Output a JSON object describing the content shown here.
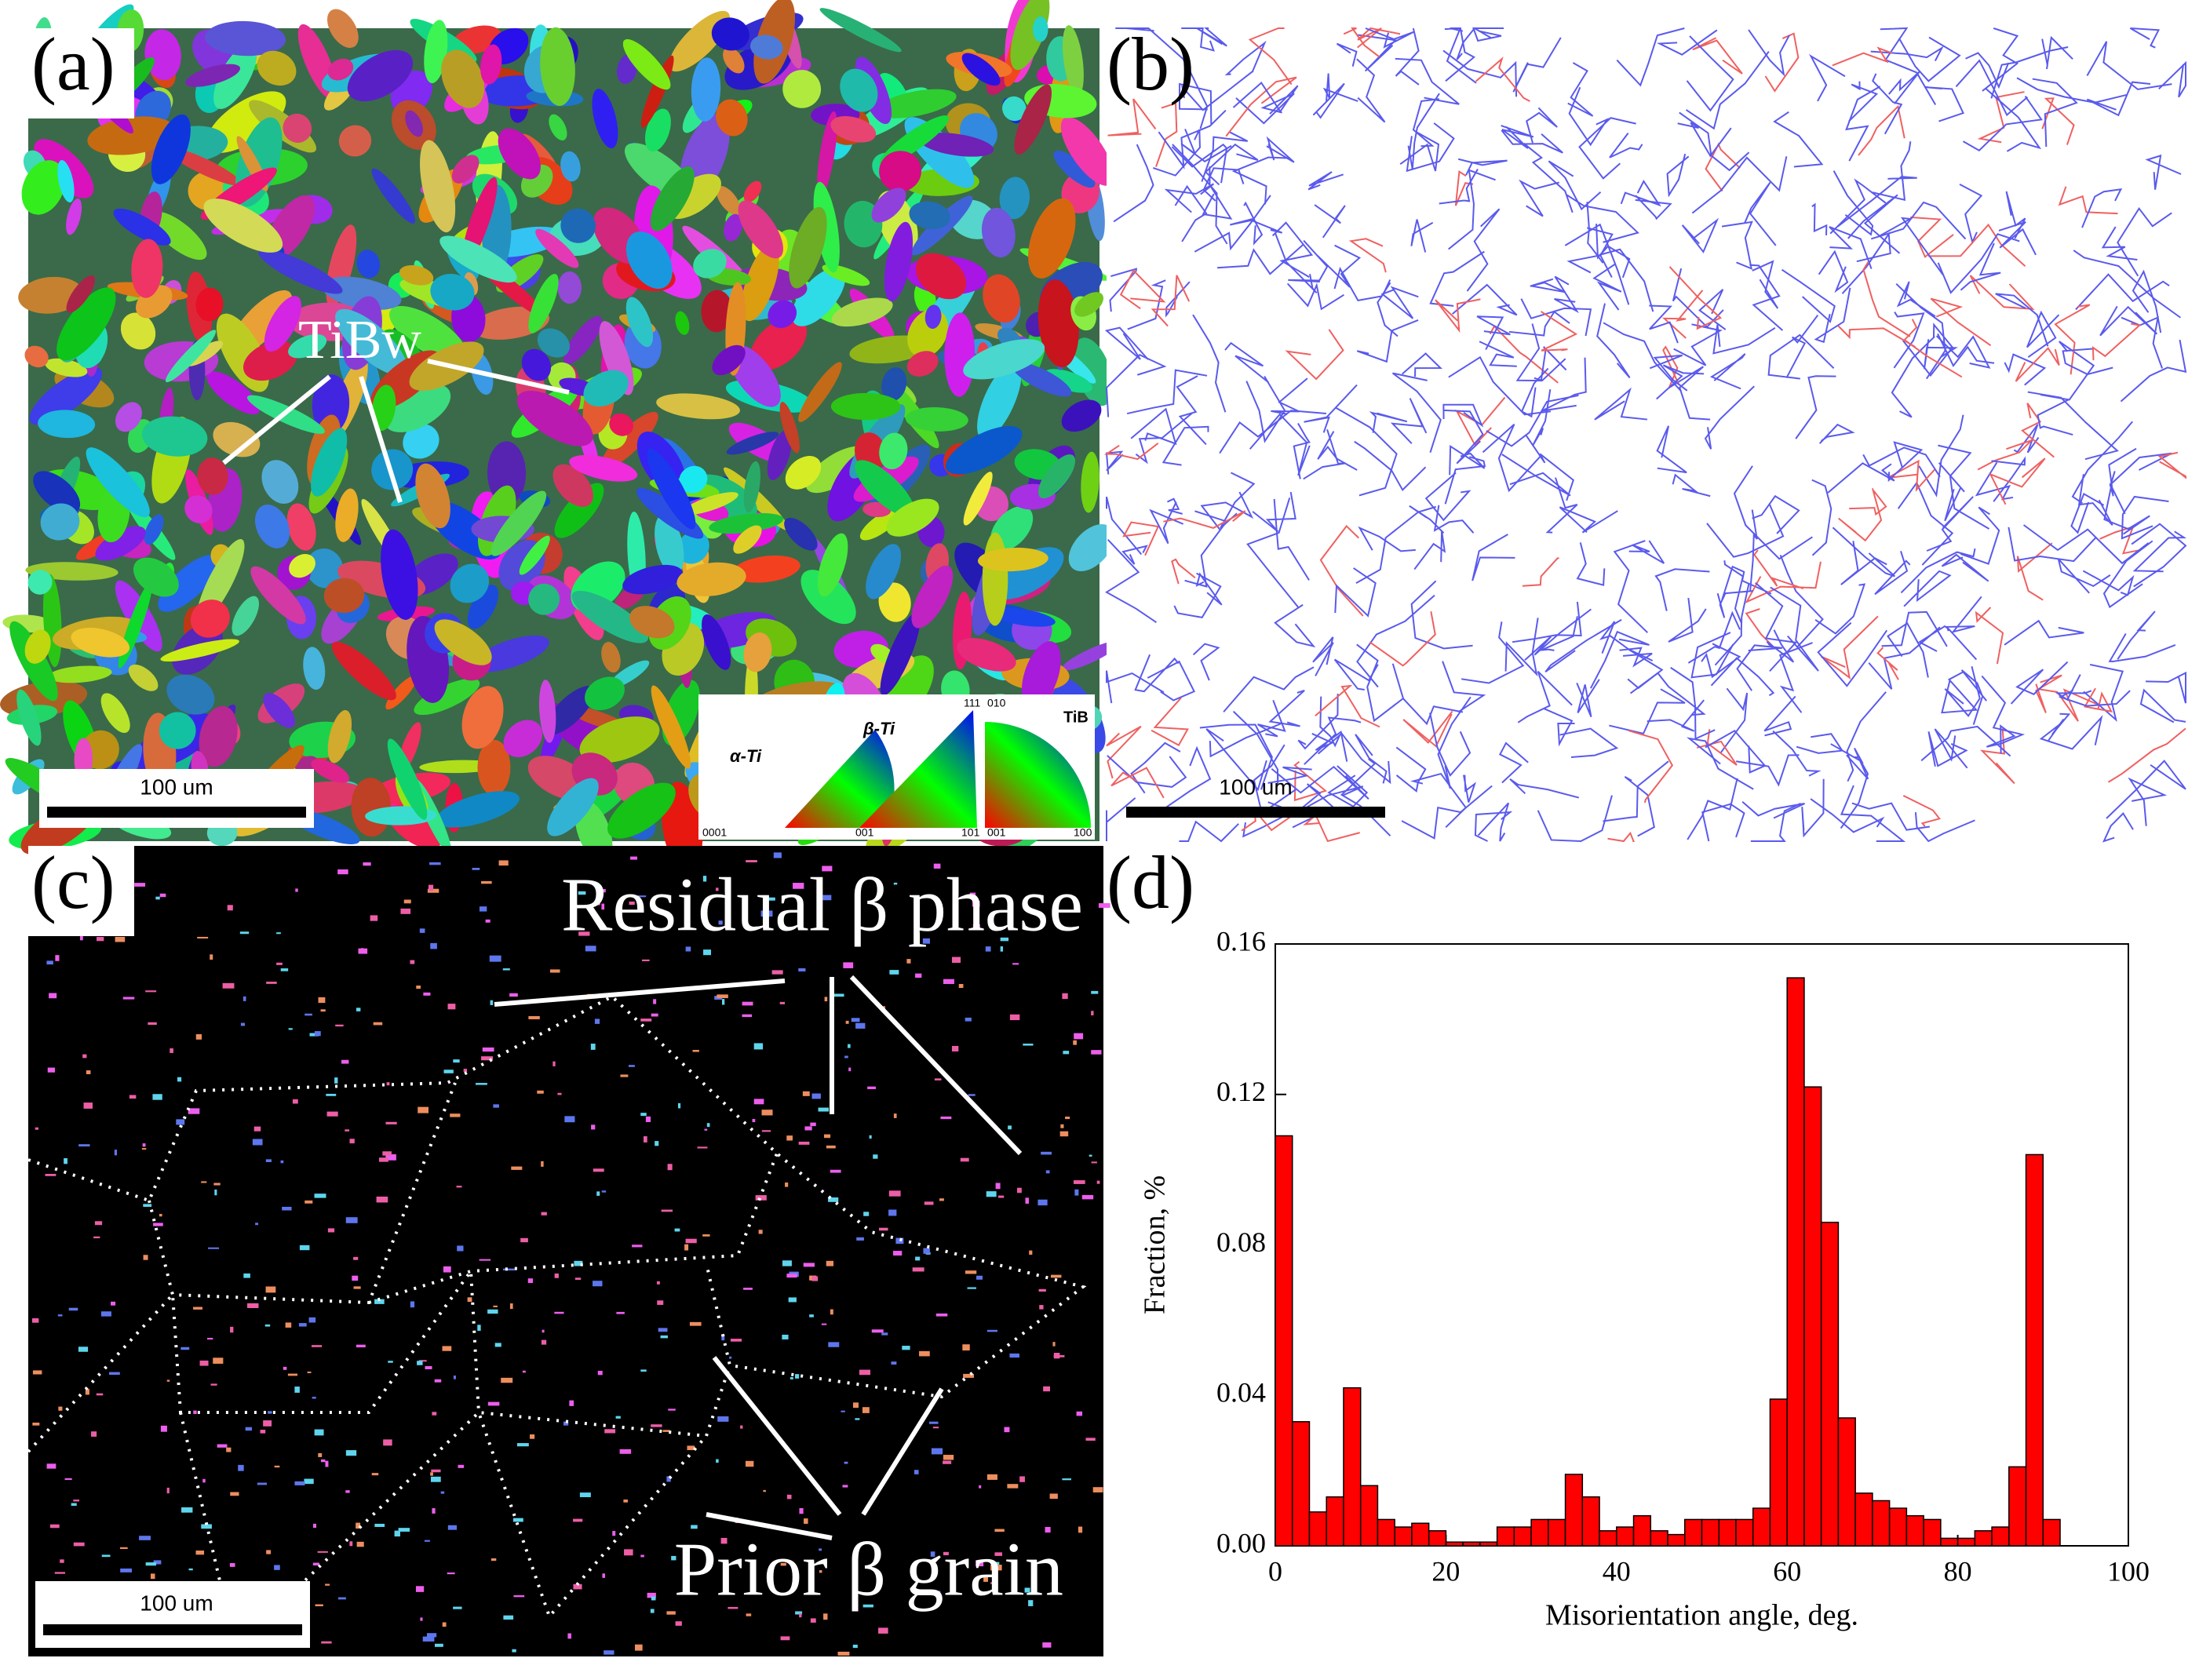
{
  "panels": {
    "a": "(a)",
    "b": "(b)",
    "c": "(c)",
    "d": "(d)"
  },
  "annotations": {
    "tibw": "TiBw",
    "scale_a": "100 um",
    "scale_b": "100 um",
    "scale_c": "100 um",
    "residual": "Residual β phase",
    "prior": "Prior β grain"
  },
  "ipf": {
    "alpha": "α-Ti",
    "beta": "β-Ti",
    "tib": "TiB",
    "alpha_corner": "0001",
    "beta_corner1": "001",
    "beta_corner2": "101",
    "beta_corner3": "111",
    "tib_corner1": "001",
    "tib_corner2": "100",
    "tib_corner3": "010"
  },
  "chart_data": {
    "type": "histogram",
    "x_label": "Misorientation angle, deg.",
    "y_label": "Fraction, %",
    "color": "#ff0000",
    "bins": [
      0,
      2,
      4,
      6,
      8,
      10,
      12,
      14,
      16,
      18,
      20,
      22,
      24,
      26,
      28,
      30,
      32,
      34,
      36,
      38,
      40,
      42,
      44,
      46,
      48,
      50,
      52,
      54,
      56,
      58,
      60,
      62,
      64,
      66,
      68,
      70,
      72,
      74,
      76,
      78,
      80,
      82,
      84,
      86,
      88,
      90,
      92
    ],
    "values": [
      0.109,
      0.033,
      0.009,
      0.013,
      0.042,
      0.016,
      0.007,
      0.005,
      0.006,
      0.004,
      0.001,
      0.001,
      0.001,
      0.005,
      0.005,
      0.007,
      0.007,
      0.019,
      0.013,
      0.004,
      0.005,
      0.008,
      0.004,
      0.003,
      0.007,
      0.007,
      0.007,
      0.007,
      0.01,
      0.039,
      0.151,
      0.122,
      0.086,
      0.034,
      0.014,
      0.012,
      0.01,
      0.008,
      0.007,
      0.002,
      0.002,
      0.004,
      0.005,
      0.021,
      0.104,
      0.007
    ],
    "xlim": [
      0,
      100
    ],
    "xticks": [
      0,
      20,
      40,
      60,
      80,
      100
    ],
    "ylim": [
      0,
      0.16
    ],
    "yticks": [
      {
        "value": 0,
        "label": "0.00"
      },
      0.04,
      0.08,
      0.12,
      0.16
    ]
  }
}
